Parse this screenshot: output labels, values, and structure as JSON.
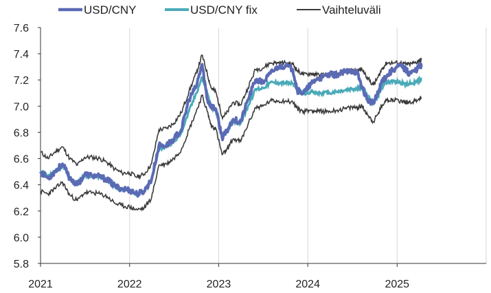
{
  "colors": {
    "usdcny": "#5b6ab4",
    "fix": "#4aaab8",
    "band": "#3a3a3a",
    "grid": "#d6d6d6",
    "axis": "#333333"
  },
  "chart_data": {
    "type": "line",
    "title": "",
    "xlabel": "",
    "ylabel": "",
    "ylim": [
      5.8,
      7.6
    ],
    "xlim": [
      "2021-01-01",
      "2026-01-01"
    ],
    "y_ticks": [
      "7.6",
      "7.4",
      "7.2",
      "7.0",
      "6.8",
      "6.6",
      "6.4",
      "6.2",
      "6.0",
      "5.8"
    ],
    "x_ticks": [
      "2021",
      "2022",
      "2023",
      "2024",
      "2025"
    ],
    "grid": "vertical",
    "legend_position": "top",
    "series": [
      {
        "name": "USD/CNY",
        "key": "usdcny",
        "points": [
          [
            "2021-01-01",
            6.5
          ],
          [
            "2021-02-01",
            6.45
          ],
          [
            "2021-03-01",
            6.5
          ],
          [
            "2021-04-01",
            6.56
          ],
          [
            "2021-05-01",
            6.45
          ],
          [
            "2021-06-01",
            6.4
          ],
          [
            "2021-07-01",
            6.48
          ],
          [
            "2021-08-01",
            6.47
          ],
          [
            "2021-09-01",
            6.46
          ],
          [
            "2021-10-01",
            6.44
          ],
          [
            "2021-11-01",
            6.39
          ],
          [
            "2021-12-01",
            6.37
          ],
          [
            "2022-01-01",
            6.36
          ],
          [
            "2022-02-01",
            6.33
          ],
          [
            "2022-03-01",
            6.35
          ],
          [
            "2022-04-01",
            6.44
          ],
          [
            "2022-05-01",
            6.7
          ],
          [
            "2022-06-01",
            6.7
          ],
          [
            "2022-07-01",
            6.75
          ],
          [
            "2022-08-01",
            6.82
          ],
          [
            "2022-09-01",
            7.05
          ],
          [
            "2022-10-01",
            7.15
          ],
          [
            "2022-10-25",
            7.32
          ],
          [
            "2022-11-15",
            7.05
          ],
          [
            "2022-12-01",
            7.0
          ],
          [
            "2022-12-20",
            6.98
          ],
          [
            "2023-01-15",
            6.76
          ],
          [
            "2023-02-01",
            6.8
          ],
          [
            "2023-03-01",
            6.9
          ],
          [
            "2023-04-01",
            6.88
          ],
          [
            "2023-05-01",
            7.05
          ],
          [
            "2023-06-01",
            7.2
          ],
          [
            "2023-07-01",
            7.18
          ],
          [
            "2023-08-01",
            7.25
          ],
          [
            "2023-09-01",
            7.3
          ],
          [
            "2023-10-01",
            7.31
          ],
          [
            "2023-11-01",
            7.28
          ],
          [
            "2023-11-20",
            7.12
          ],
          [
            "2023-12-15",
            7.1
          ],
          [
            "2024-01-15",
            7.17
          ],
          [
            "2024-02-01",
            7.2
          ],
          [
            "2024-03-01",
            7.22
          ],
          [
            "2024-04-01",
            7.24
          ],
          [
            "2024-05-01",
            7.24
          ],
          [
            "2024-06-01",
            7.26
          ],
          [
            "2024-07-01",
            7.27
          ],
          [
            "2024-07-20",
            7.26
          ],
          [
            "2024-08-10",
            7.15
          ],
          [
            "2024-09-01",
            7.05
          ],
          [
            "2024-09-25",
            7.02
          ],
          [
            "2024-10-15",
            7.1
          ],
          [
            "2024-11-01",
            7.2
          ],
          [
            "2024-11-20",
            7.23
          ],
          [
            "2024-12-15",
            7.28
          ],
          [
            "2025-01-15",
            7.31
          ],
          [
            "2025-02-05",
            7.28
          ],
          [
            "2025-02-20",
            7.25
          ],
          [
            "2025-03-15",
            7.27
          ],
          [
            "2025-04-05",
            7.31
          ],
          [
            "2025-04-10",
            7.3
          ]
        ]
      },
      {
        "name": "USD/CNY fix",
        "key": "fix",
        "points": [
          [
            "2021-01-01",
            6.5
          ],
          [
            "2021-02-01",
            6.46
          ],
          [
            "2021-03-01",
            6.5
          ],
          [
            "2021-04-01",
            6.55
          ],
          [
            "2021-05-01",
            6.45
          ],
          [
            "2021-06-01",
            6.41
          ],
          [
            "2021-07-01",
            6.47
          ],
          [
            "2021-08-01",
            6.47
          ],
          [
            "2021-09-01",
            6.46
          ],
          [
            "2021-10-01",
            6.43
          ],
          [
            "2021-11-01",
            6.39
          ],
          [
            "2021-12-01",
            6.37
          ],
          [
            "2022-01-01",
            6.36
          ],
          [
            "2022-02-01",
            6.33
          ],
          [
            "2022-03-01",
            6.35
          ],
          [
            "2022-04-01",
            6.43
          ],
          [
            "2022-05-01",
            6.68
          ],
          [
            "2022-06-01",
            6.69
          ],
          [
            "2022-07-01",
            6.73
          ],
          [
            "2022-08-01",
            6.8
          ],
          [
            "2022-09-01",
            6.96
          ],
          [
            "2022-10-01",
            7.1
          ],
          [
            "2022-10-25",
            7.22
          ],
          [
            "2022-11-15",
            7.1
          ],
          [
            "2022-12-01",
            6.99
          ],
          [
            "2022-12-20",
            6.97
          ],
          [
            "2023-01-15",
            6.78
          ],
          [
            "2023-02-01",
            6.8
          ],
          [
            "2023-03-01",
            6.89
          ],
          [
            "2023-04-01",
            6.87
          ],
          [
            "2023-05-01",
            7.0
          ],
          [
            "2023-06-01",
            7.13
          ],
          [
            "2023-07-01",
            7.14
          ],
          [
            "2023-08-01",
            7.18
          ],
          [
            "2023-09-01",
            7.18
          ],
          [
            "2023-10-01",
            7.18
          ],
          [
            "2023-11-01",
            7.17
          ],
          [
            "2023-11-20",
            7.12
          ],
          [
            "2023-12-15",
            7.1
          ],
          [
            "2024-01-15",
            7.11
          ],
          [
            "2024-02-01",
            7.1
          ],
          [
            "2024-03-01",
            7.1
          ],
          [
            "2024-04-01",
            7.1
          ],
          [
            "2024-05-01",
            7.11
          ],
          [
            "2024-06-01",
            7.12
          ],
          [
            "2024-07-01",
            7.13
          ],
          [
            "2024-07-20",
            7.13
          ],
          [
            "2024-08-10",
            7.14
          ],
          [
            "2024-09-01",
            7.08
          ],
          [
            "2024-09-25",
            7.02
          ],
          [
            "2024-10-15",
            7.08
          ],
          [
            "2024-11-01",
            7.15
          ],
          [
            "2024-11-20",
            7.19
          ],
          [
            "2024-12-15",
            7.19
          ],
          [
            "2025-01-15",
            7.18
          ],
          [
            "2025-02-05",
            7.17
          ],
          [
            "2025-02-20",
            7.17
          ],
          [
            "2025-03-15",
            7.18
          ],
          [
            "2025-04-05",
            7.2
          ],
          [
            "2025-04-10",
            7.21
          ]
        ]
      },
      {
        "name": "Vaihteluväli",
        "key": "band",
        "upper": [
          [
            "2021-01-01",
            6.65
          ],
          [
            "2021-02-01",
            6.6
          ],
          [
            "2021-03-01",
            6.65
          ],
          [
            "2021-04-01",
            6.69
          ],
          [
            "2021-05-01",
            6.6
          ],
          [
            "2021-06-01",
            6.55
          ],
          [
            "2021-07-01",
            6.61
          ],
          [
            "2021-08-01",
            6.61
          ],
          [
            "2021-09-01",
            6.6
          ],
          [
            "2021-10-01",
            6.57
          ],
          [
            "2021-11-01",
            6.52
          ],
          [
            "2021-12-01",
            6.49
          ],
          [
            "2022-01-01",
            6.49
          ],
          [
            "2022-02-01",
            6.46
          ],
          [
            "2022-03-01",
            6.48
          ],
          [
            "2022-04-01",
            6.56
          ],
          [
            "2022-05-01",
            6.82
          ],
          [
            "2022-06-01",
            6.83
          ],
          [
            "2022-07-01",
            6.87
          ],
          [
            "2022-08-01",
            6.95
          ],
          [
            "2022-09-01",
            7.11
          ],
          [
            "2022-10-01",
            7.25
          ],
          [
            "2022-10-25",
            7.39
          ],
          [
            "2022-11-15",
            7.25
          ],
          [
            "2022-12-01",
            7.14
          ],
          [
            "2022-12-20",
            7.11
          ],
          [
            "2023-01-15",
            6.92
          ],
          [
            "2023-02-01",
            6.94
          ],
          [
            "2023-03-01",
            7.03
          ],
          [
            "2023-04-01",
            7.01
          ],
          [
            "2023-05-01",
            7.14
          ],
          [
            "2023-06-01",
            7.28
          ],
          [
            "2023-07-01",
            7.29
          ],
          [
            "2023-08-01",
            7.33
          ],
          [
            "2023-09-01",
            7.33
          ],
          [
            "2023-10-01",
            7.33
          ],
          [
            "2023-11-01",
            7.32
          ],
          [
            "2023-11-20",
            7.27
          ],
          [
            "2023-12-15",
            7.24
          ],
          [
            "2024-01-15",
            7.25
          ],
          [
            "2024-02-01",
            7.24
          ],
          [
            "2024-03-01",
            7.24
          ],
          [
            "2024-04-01",
            7.24
          ],
          [
            "2024-05-01",
            7.25
          ],
          [
            "2024-06-01",
            7.26
          ],
          [
            "2024-07-01",
            7.27
          ],
          [
            "2024-07-20",
            7.27
          ],
          [
            "2024-08-10",
            7.28
          ],
          [
            "2024-09-01",
            7.22
          ],
          [
            "2024-09-25",
            7.16
          ],
          [
            "2024-10-15",
            7.22
          ],
          [
            "2024-11-01",
            7.29
          ],
          [
            "2024-11-20",
            7.33
          ],
          [
            "2024-12-15",
            7.33
          ],
          [
            "2025-01-15",
            7.33
          ],
          [
            "2025-02-05",
            7.32
          ],
          [
            "2025-02-20",
            7.32
          ],
          [
            "2025-03-15",
            7.33
          ],
          [
            "2025-04-05",
            7.35
          ],
          [
            "2025-04-10",
            7.35
          ]
        ],
        "lower": [
          [
            "2021-01-01",
            6.35
          ],
          [
            "2021-02-01",
            6.33
          ],
          [
            "2021-03-01",
            6.37
          ],
          [
            "2021-04-01",
            6.42
          ],
          [
            "2021-05-01",
            6.32
          ],
          [
            "2021-06-01",
            6.28
          ],
          [
            "2021-07-01",
            6.34
          ],
          [
            "2021-08-01",
            6.34
          ],
          [
            "2021-09-01",
            6.33
          ],
          [
            "2021-10-01",
            6.31
          ],
          [
            "2021-11-01",
            6.26
          ],
          [
            "2021-12-01",
            6.24
          ],
          [
            "2022-01-01",
            6.23
          ],
          [
            "2022-02-01",
            6.21
          ],
          [
            "2022-03-01",
            6.22
          ],
          [
            "2022-04-01",
            6.3
          ],
          [
            "2022-05-01",
            6.55
          ],
          [
            "2022-06-01",
            6.56
          ],
          [
            "2022-07-01",
            6.6
          ],
          [
            "2022-08-01",
            6.67
          ],
          [
            "2022-09-01",
            6.82
          ],
          [
            "2022-10-01",
            6.96
          ],
          [
            "2022-10-25",
            7.08
          ],
          [
            "2022-11-15",
            6.96
          ],
          [
            "2022-12-01",
            6.85
          ],
          [
            "2022-12-20",
            6.83
          ],
          [
            "2023-01-15",
            6.63
          ],
          [
            "2023-02-01",
            6.66
          ],
          [
            "2023-03-01",
            6.75
          ],
          [
            "2023-04-01",
            6.73
          ],
          [
            "2023-05-01",
            6.86
          ],
          [
            "2023-06-01",
            6.99
          ],
          [
            "2023-07-01",
            7.0
          ],
          [
            "2023-08-01",
            7.04
          ],
          [
            "2023-09-01",
            7.04
          ],
          [
            "2023-10-01",
            7.04
          ],
          [
            "2023-11-01",
            7.03
          ],
          [
            "2023-11-20",
            6.98
          ],
          [
            "2023-12-15",
            6.96
          ],
          [
            "2024-01-15",
            6.97
          ],
          [
            "2024-02-01",
            6.96
          ],
          [
            "2024-03-01",
            6.96
          ],
          [
            "2024-04-01",
            6.96
          ],
          [
            "2024-05-01",
            6.97
          ],
          [
            "2024-06-01",
            6.98
          ],
          [
            "2024-07-01",
            6.99
          ],
          [
            "2024-07-20",
            6.99
          ],
          [
            "2024-08-10",
            7.0
          ],
          [
            "2024-09-01",
            6.94
          ],
          [
            "2024-09-25",
            6.88
          ],
          [
            "2024-10-15",
            6.94
          ],
          [
            "2024-11-01",
            7.01
          ],
          [
            "2024-11-20",
            7.05
          ],
          [
            "2024-12-15",
            7.05
          ],
          [
            "2025-01-15",
            7.04
          ],
          [
            "2025-02-05",
            7.03
          ],
          [
            "2025-02-20",
            7.03
          ],
          [
            "2025-03-15",
            7.04
          ],
          [
            "2025-04-05",
            7.06
          ],
          [
            "2025-04-10",
            7.06
          ]
        ]
      }
    ]
  }
}
